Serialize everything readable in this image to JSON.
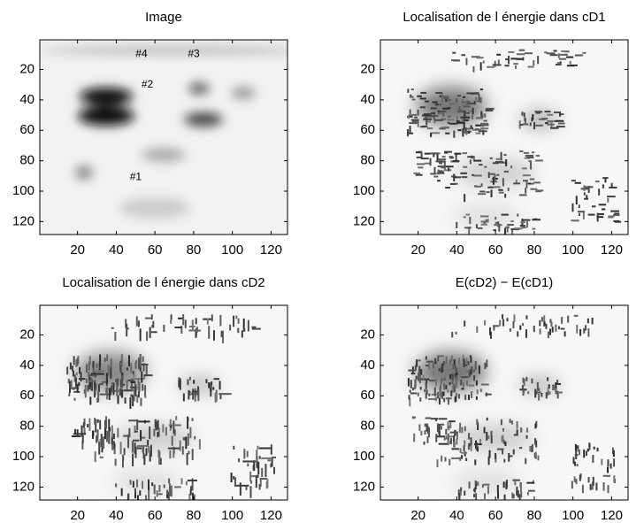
{
  "chart_data": [
    {
      "type": "image",
      "title": "Image",
      "xlim": [
        0.5,
        128.5
      ],
      "ylim": [
        128.5,
        0.5
      ],
      "xticks": [
        20,
        40,
        60,
        80,
        100,
        120
      ],
      "yticks": [
        20,
        40,
        60,
        80,
        100,
        120
      ],
      "annotations": [
        {
          "text": "#4",
          "x": 50,
          "y": 10
        },
        {
          "text": "#3",
          "x": 77,
          "y": 10
        },
        {
          "text": "#2",
          "x": 53,
          "y": 30
        },
        {
          "text": "#1",
          "x": 47,
          "y": 91
        }
      ]
    },
    {
      "type": "image",
      "title": "Localisation de l énergie dans cD1",
      "xlim": [
        0.5,
        128.5
      ],
      "ylim": [
        128.5,
        0.5
      ],
      "xticks": [
        20,
        40,
        60,
        80,
        100,
        120
      ],
      "yticks": [
        20,
        40,
        60,
        80,
        100,
        120
      ]
    },
    {
      "type": "image",
      "title": "Localisation de l énergie dans cD2",
      "xlim": [
        0.5,
        128.5
      ],
      "ylim": [
        128.5,
        0.5
      ],
      "xticks": [
        20,
        40,
        60,
        80,
        100,
        120
      ],
      "yticks": [
        20,
        40,
        60,
        80,
        100,
        120
      ]
    },
    {
      "type": "image",
      "title": "E(cD2) − E(cD1)",
      "xlim": [
        0.5,
        128.5
      ],
      "ylim": [
        128.5,
        0.5
      ],
      "xticks": [
        20,
        40,
        60,
        80,
        100,
        120
      ],
      "yticks": [
        20,
        40,
        60,
        80,
        100,
        120
      ]
    }
  ]
}
